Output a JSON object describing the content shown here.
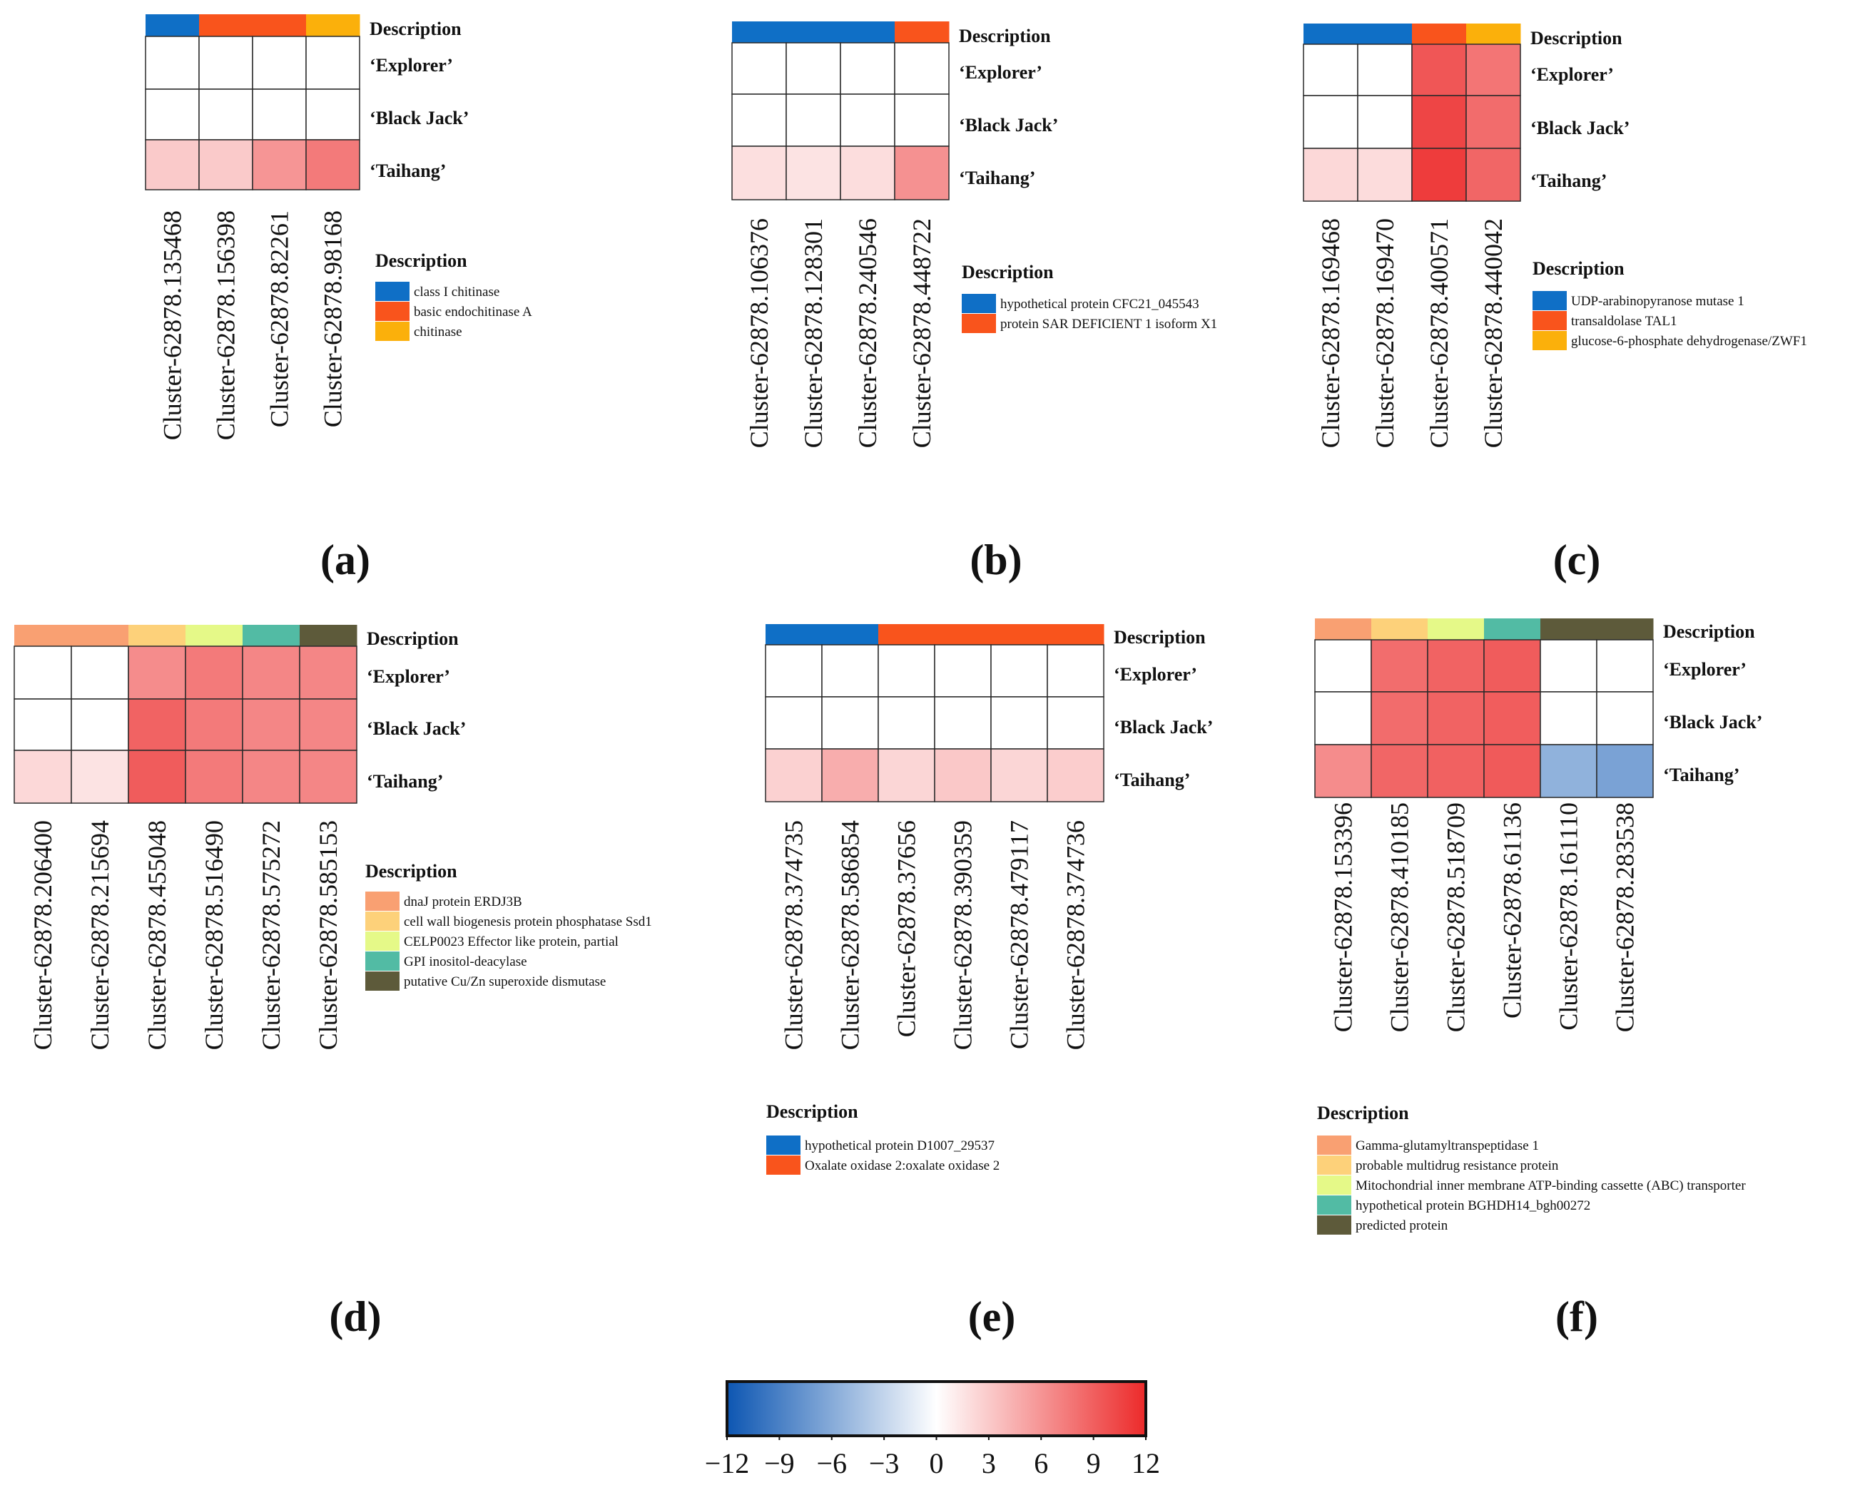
{
  "chart_data": [
    {
      "panel": "(a)",
      "type": "heatmap",
      "title": "",
      "rows": [
        "‘Explorer’",
        "‘Black Jack’",
        "‘Taihang’"
      ],
      "columns": [
        "Cluster-62878.135468",
        "Cluster-62878.156398",
        "Cluster-62878.82261",
        "Cluster-62878.98168"
      ],
      "column_group": [
        0,
        1,
        1,
        2
      ],
      "values": [
        [
          0,
          0,
          0,
          0
        ],
        [
          0,
          0,
          0,
          0
        ],
        [
          3,
          3,
          6,
          7.5
        ]
      ],
      "legend_title": "Description",
      "description_header": "Description",
      "legend": [
        {
          "label": "class I chitinase",
          "color": "#0f6fc6"
        },
        {
          "label": "basic endochitinase A",
          "color": "#f9541c"
        },
        {
          "label": "chitinase",
          "color": "#fbb00b"
        }
      ]
    },
    {
      "panel": "(b)",
      "type": "heatmap",
      "title": "",
      "rows": [
        "‘Explorer’",
        "‘Black Jack’",
        "‘Taihang’"
      ],
      "columns": [
        "Cluster-62878.106376",
        "Cluster-62878.128301",
        "Cluster-62878.240546",
        "Cluster-62878.448722"
      ],
      "column_group": [
        0,
        0,
        0,
        1
      ],
      "values": [
        [
          0,
          0,
          0,
          0
        ],
        [
          0,
          0,
          0,
          0
        ],
        [
          1.8,
          1.6,
          1.9,
          6.2
        ]
      ],
      "legend_title": "Description",
      "description_header": "Description",
      "legend": [
        {
          "label": "hypothetical protein CFC21_045543",
          "color": "#0f6fc6"
        },
        {
          "label": "protein SAR DEFICIENT 1 isoform X1",
          "color": "#f9541c"
        }
      ]
    },
    {
      "panel": "(c)",
      "type": "heatmap",
      "title": "",
      "rows": [
        "‘Explorer’",
        "‘Black Jack’",
        "‘Taihang’"
      ],
      "columns": [
        "Cluster-62878.169468",
        "Cluster-62878.169470",
        "Cluster-62878.400571",
        "Cluster-62878.440042"
      ],
      "column_group": [
        0,
        0,
        1,
        2
      ],
      "values": [
        [
          0,
          0,
          9.5,
          7.8
        ],
        [
          0,
          0,
          10.5,
          8.3
        ],
        [
          2.2,
          2,
          11,
          8.6
        ]
      ],
      "legend_title": "Description",
      "description_header": "Description",
      "legend": [
        {
          "label": "UDP-arabinopyranose mutase 1",
          "color": "#0f6fc6"
        },
        {
          "label": "transaldolase TAL1",
          "color": "#f9541c"
        },
        {
          "label": "glucose-6-phosphate dehydrogenase/ZWF1",
          "color": "#fbb00b"
        }
      ]
    },
    {
      "panel": "(d)",
      "type": "heatmap",
      "title": "",
      "rows": [
        "‘Explorer’",
        "‘Black Jack’",
        "‘Taihang’"
      ],
      "columns": [
        "Cluster-62878.206400",
        "Cluster-62878.215694",
        "Cluster-62878.455048",
        "Cluster-62878.516490",
        "Cluster-62878.575272",
        "Cluster-62878.585153"
      ],
      "column_group": [
        0,
        0,
        1,
        2,
        3,
        4
      ],
      "values": [
        [
          0,
          0,
          6.5,
          7.5,
          6.8,
          6.8
        ],
        [
          0,
          0,
          8.8,
          7.5,
          6.8,
          6.8
        ],
        [
          2.2,
          1.6,
          9.2,
          7.5,
          6.8,
          6.8
        ]
      ],
      "legend_title": "Description",
      "description_header": "Description",
      "legend": [
        {
          "label": "dnaJ protein ERDJ3B",
          "color": "#f9a072"
        },
        {
          "label": "cell wall biogenesis protein phosphatase Ssd1",
          "color": "#fdd17a"
        },
        {
          "label": "CELP0023 Effector like protein, partial",
          "color": "#e5f988"
        },
        {
          "label": "GPI inositol-deacylase",
          "color": "#52bba4"
        },
        {
          "label": "putative Cu/Zn superoxide dismutase",
          "color": "#5d5a3a"
        }
      ]
    },
    {
      "panel": "(e)",
      "type": "heatmap",
      "title": "",
      "rows": [
        "‘Explorer’",
        "‘Black Jack’",
        "‘Taihang’"
      ],
      "columns": [
        "Cluster-62878.374735",
        "Cluster-62878.586854",
        "Cluster-62878.37656",
        "Cluster-62878.390359",
        "Cluster-62878.479117",
        "Cluster-62878.374736"
      ],
      "column_group": [
        0,
        0,
        1,
        1,
        1,
        1
      ],
      "values": [
        [
          0,
          0,
          0,
          0,
          0,
          0
        ],
        [
          0,
          0,
          0,
          0,
          0,
          0
        ],
        [
          2.6,
          4.6,
          2.3,
          3.1,
          2.3,
          2.8
        ]
      ],
      "legend_title": "Description",
      "description_header": "Description",
      "legend": [
        {
          "label": "hypothetical protein D1007_29537",
          "color": "#0f6fc6"
        },
        {
          "label": "Oxalate oxidase 2:oxalate oxidase 2",
          "color": "#f9541c"
        }
      ]
    },
    {
      "panel": "(f)",
      "type": "heatmap",
      "title": "",
      "rows": [
        "‘Explorer’",
        "‘Black Jack’",
        "‘Taihang’"
      ],
      "columns": [
        "Cluster-62878.153396",
        "Cluster-62878.410185",
        "Cluster-62878.518709",
        "Cluster-62878.61136",
        "Cluster-62878.161110",
        "Cluster-62878.283538"
      ],
      "column_group": [
        0,
        1,
        2,
        3,
        4,
        4
      ],
      "values": [
        [
          0,
          8.2,
          8.8,
          9.2,
          0,
          0
        ],
        [
          0,
          8.3,
          8.8,
          9.1,
          0,
          0
        ],
        [
          6.5,
          8.6,
          8.9,
          9.3,
          -5.5,
          -6.6
        ]
      ],
      "legend_title": "Description",
      "description_header": "Description",
      "legend": [
        {
          "label": "Gamma-glutamyltranspeptidase 1",
          "color": "#f9a072"
        },
        {
          "label": "probable multidrug resistance protein",
          "color": "#fdd17a"
        },
        {
          "label": "Mitochondrial inner membrane ATP-binding cassette (ABC) transporter",
          "color": "#e5f988"
        },
        {
          "label": "hypothetical protein BGHDH14_bgh00272",
          "color": "#52bba4"
        },
        {
          "label": "predicted protein",
          "color": "#5d5a3a"
        }
      ]
    }
  ],
  "colorbar": {
    "min": -12,
    "max": 12,
    "ticks": [
      -12,
      -9,
      -6,
      -3,
      0,
      3,
      6,
      9,
      12
    ],
    "tick_labels": [
      "−12",
      "−9",
      "−6",
      "−3",
      "0",
      "3",
      "6",
      "9",
      "12"
    ],
    "low_color": "#0d56b2",
    "mid_color": "#ffffff",
    "high_color": "#ec2a2a"
  }
}
